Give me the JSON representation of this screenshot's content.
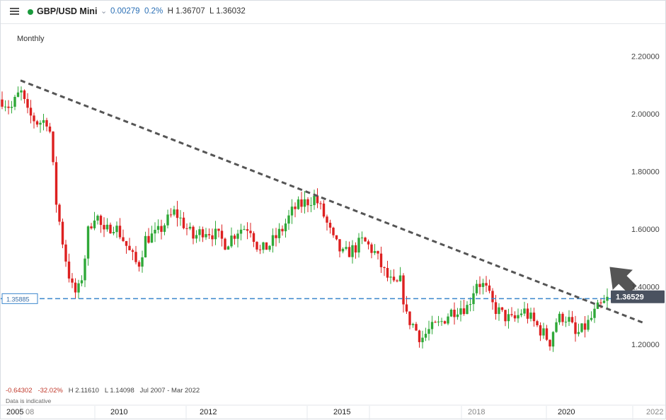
{
  "toolbar": {
    "menu_icon": "hamburger-menu-icon",
    "status_color": "#1a9a3c",
    "instrument": "GBP/USD Mini",
    "dropdown_icon": "chevron-down-icon",
    "change": "0.00279",
    "change_pct": "0.2%",
    "high": "H 1.36707",
    "low": "L 1.36032"
  },
  "chart_header": {
    "timeframe": "Monthly"
  },
  "stats": {
    "change": "-0.64302",
    "change_pct": "-32.02%",
    "high": "H 2.11610",
    "low": "L 1.14098",
    "period": "Jul 2007 - Mar 2022",
    "note": "Data is indicative"
  },
  "colors": {
    "up": "#2fa838",
    "down": "#dd2020",
    "trendline": "#555555",
    "support": "#3a86cc",
    "current_bg": "#4a5260",
    "arrow": "#555555"
  },
  "chart_data": {
    "type": "candlestick",
    "title": "",
    "x_ticks": [
      "2005",
      "08",
      "2010",
      "2012",
      "2015",
      "2018",
      "2020",
      "2022"
    ],
    "y_ticks": [
      "2.20000",
      "2.00000",
      "1.80000",
      "1.60000",
      "1.40000",
      "1.20000"
    ],
    "ylim": [
      1.08,
      2.27
    ],
    "current_price": "1.36529",
    "support_level": "1.35885",
    "grid": false,
    "annotations": [
      "descending trendline from Nov 2007 high",
      "upward arrow indicating breakout"
    ]
  }
}
